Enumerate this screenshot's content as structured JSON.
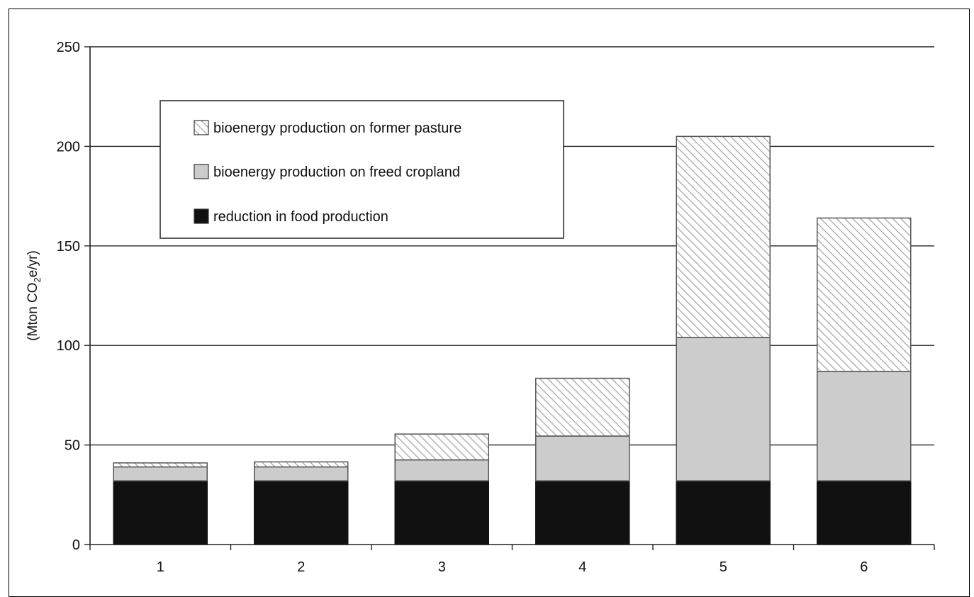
{
  "chart_data": {
    "type": "bar",
    "stacked": true,
    "categories": [
      "1",
      "2",
      "3",
      "4",
      "5",
      "6"
    ],
    "series": [
      {
        "name": "reduction in food production",
        "values": [
          32,
          32,
          32,
          32,
          32,
          32
        ],
        "color": "#111111",
        "fill": "solid"
      },
      {
        "name": "bioenergy production on freed cropland",
        "values": [
          7,
          7,
          10.5,
          22.5,
          72,
          55
        ],
        "color": "#cccccc",
        "fill": "solid"
      },
      {
        "name": "bioenergy production on former pasture",
        "values": [
          2,
          2.5,
          13,
          29,
          101,
          77
        ],
        "color": "#ffffff",
        "fill": "hatched"
      }
    ],
    "legend_order": [
      "bioenergy production on former pasture",
      "bioenergy production on freed cropland",
      "reduction in food production"
    ],
    "ylabel_parts": [
      "(Mton CO",
      "2",
      "e/yr)"
    ],
    "yticks": [
      "0",
      "50",
      "100",
      "150",
      "200",
      "250"
    ],
    "ylim": [
      0,
      250
    ],
    "grid": true,
    "legend_position": "top-left"
  }
}
